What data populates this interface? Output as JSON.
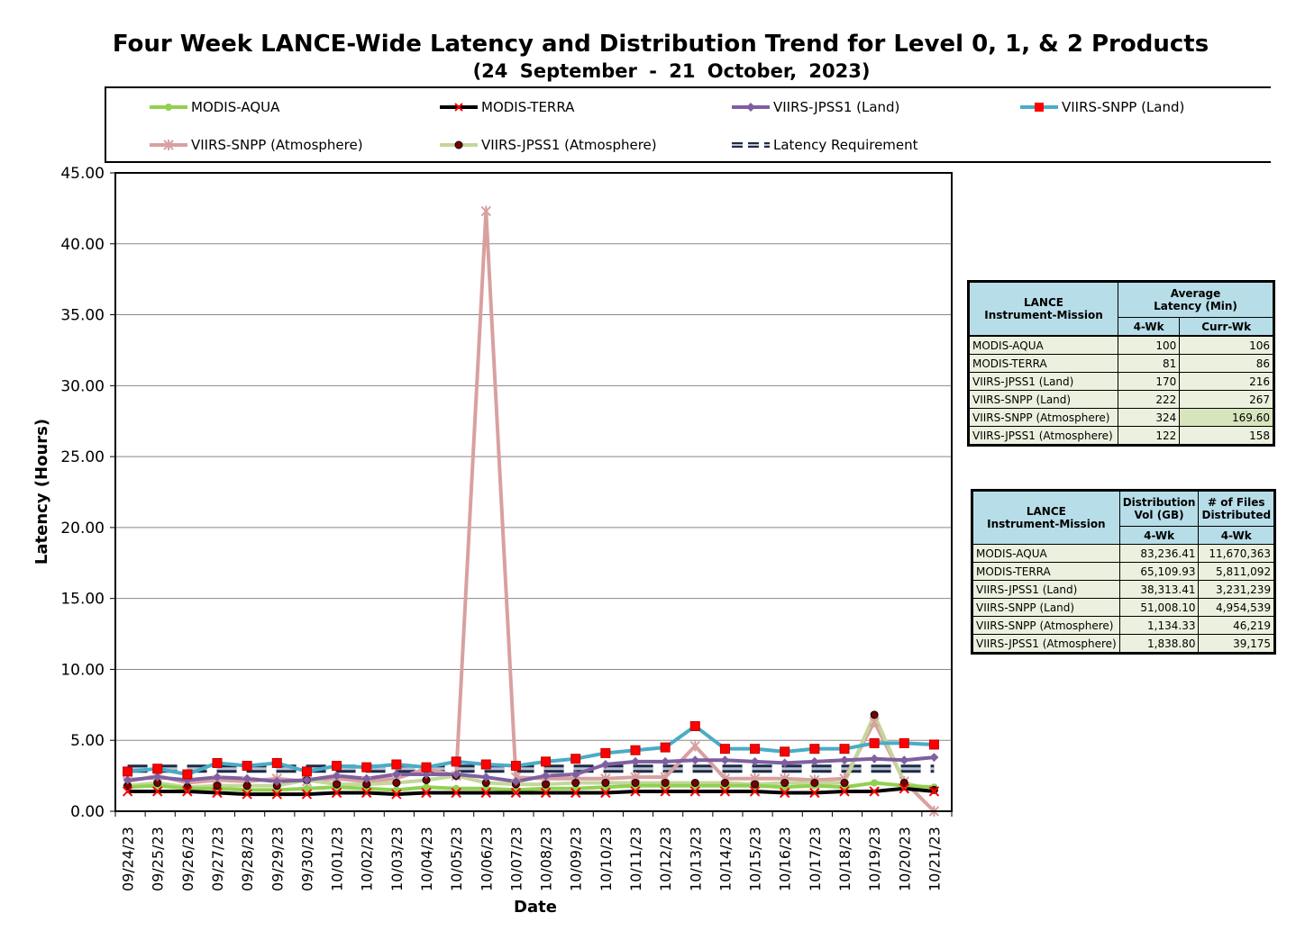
{
  "title": "Four Week LANCE-Wide Latency and Distribution Trend for Level 0, 1, & 2 Products",
  "subtitle": "(24  September   -  21  October,  2023)",
  "legend": [
    {
      "name": "MODIS-AQUA",
      "color": "#92d050",
      "marker": "circle"
    },
    {
      "name": "MODIS-TERRA",
      "color": "#000000",
      "marker": "x-red"
    },
    {
      "name": "VIIRS-JPSS1 (Land)",
      "color": "#7f5fa0",
      "marker": "diamond"
    },
    {
      "name": "VIIRS-SNPP (Land)",
      "color": "#4bacc6",
      "marker": "square-red"
    },
    {
      "name": "VIIRS-SNPP (Atmosphere)",
      "color": "#d9a0a0",
      "marker": "star"
    },
    {
      "name": "VIIRS-JPSS1 (Atmosphere)",
      "color": "#c4d79b",
      "marker": "circle-dark"
    },
    {
      "name": "Latency Requirement",
      "color": "#1f2a44",
      "marker": "dash"
    }
  ],
  "chart_data": {
    "type": "line",
    "xlabel": "Date",
    "ylabel": "Latency (Hours)",
    "ylim": [
      0,
      45
    ],
    "yticks": [
      "0.00",
      "5.00",
      "10.00",
      "15.00",
      "20.00",
      "25.00",
      "30.00",
      "35.00",
      "40.00",
      "45.00"
    ],
    "categories": [
      "09/24/23",
      "09/25/23",
      "09/26/23",
      "09/27/23",
      "09/28/23",
      "09/29/23",
      "09/30/23",
      "10/01/23",
      "10/02/23",
      "10/03/23",
      "10/04/23",
      "10/05/23",
      "10/06/23",
      "10/07/23",
      "10/08/23",
      "10/09/23",
      "10/10/23",
      "10/11/23",
      "10/12/23",
      "10/13/23",
      "10/14/23",
      "10/15/23",
      "10/16/23",
      "10/17/23",
      "10/18/23",
      "10/19/23",
      "10/20/23",
      "10/21/23"
    ],
    "series": [
      {
        "name": "MODIS-AQUA",
        "color": "#92d050",
        "values": [
          1.7,
          1.8,
          1.6,
          1.6,
          1.5,
          1.5,
          1.6,
          1.7,
          1.6,
          1.5,
          1.7,
          1.6,
          1.6,
          1.5,
          1.6,
          1.6,
          1.7,
          1.8,
          1.8,
          1.8,
          1.8,
          1.8,
          1.7,
          1.8,
          1.7,
          2.0,
          1.8,
          1.7
        ]
      },
      {
        "name": "MODIS-TERRA",
        "color": "#000000",
        "values": [
          1.4,
          1.4,
          1.4,
          1.3,
          1.2,
          1.2,
          1.2,
          1.3,
          1.3,
          1.2,
          1.3,
          1.3,
          1.3,
          1.3,
          1.3,
          1.3,
          1.3,
          1.4,
          1.4,
          1.4,
          1.4,
          1.4,
          1.3,
          1.3,
          1.4,
          1.4,
          1.6,
          1.4
        ]
      },
      {
        "name": "VIIRS-JPSS1 (Land)",
        "color": "#7f5fa0",
        "values": [
          2.2,
          2.4,
          2.2,
          2.4,
          2.3,
          2.1,
          2.2,
          2.5,
          2.3,
          2.6,
          2.6,
          2.6,
          2.4,
          2.1,
          2.5,
          2.6,
          3.3,
          3.5,
          3.5,
          3.6,
          3.6,
          3.5,
          3.4,
          3.5,
          3.6,
          3.7,
          3.6,
          3.8
        ]
      },
      {
        "name": "VIIRS-SNPP (Land)",
        "color": "#4bacc6",
        "values": [
          2.8,
          3.0,
          2.6,
          3.4,
          3.2,
          3.4,
          2.8,
          3.2,
          3.1,
          3.3,
          3.1,
          3.5,
          3.3,
          3.2,
          3.5,
          3.7,
          4.1,
          4.3,
          4.5,
          6.0,
          4.4,
          4.4,
          4.2,
          4.4,
          4.4,
          4.8,
          4.8,
          4.7
        ]
      },
      {
        "name": "VIIRS-SNPP (Atmosphere)",
        "color": "#d9a0a0",
        "values": [
          2.1,
          2.5,
          2.0,
          2.2,
          2.1,
          2.3,
          2.1,
          2.3,
          2.1,
          2.3,
          3.0,
          2.5,
          42.3,
          2.4,
          2.3,
          2.3,
          2.3,
          2.4,
          2.4,
          4.6,
          2.3,
          2.3,
          2.3,
          2.2,
          2.3,
          6.3,
          2.1,
          0.0
        ]
      },
      {
        "name": "VIIRS-JPSS1 (Atmosphere)",
        "color": "#c4d79b",
        "values": [
          1.8,
          2.0,
          1.7,
          1.8,
          1.8,
          1.8,
          2.2,
          1.9,
          1.9,
          2.0,
          2.2,
          2.5,
          2.0,
          1.9,
          1.9,
          2.0,
          2.0,
          2.0,
          2.0,
          2.0,
          2.0,
          1.9,
          2.0,
          2.0,
          2.0,
          6.8,
          2.0,
          1.5
        ]
      },
      {
        "name": "Latency Requirement",
        "color": "#1f2a44",
        "values": [
          3,
          3,
          3,
          3,
          3,
          3,
          3,
          3,
          3,
          3,
          3,
          3,
          3,
          3,
          3,
          3,
          3,
          3,
          3,
          3,
          3,
          3,
          3,
          3,
          3,
          3,
          3,
          3
        ]
      }
    ]
  },
  "latency_table": {
    "header1": [
      "LANCE",
      "Instrument-Mission"
    ],
    "header2": [
      "Average",
      "Latency (Min)"
    ],
    "col_4wk": "4-Wk",
    "col_curr": "Curr-Wk",
    "rows": [
      {
        "mission": "MODIS-AQUA",
        "wk4": "100",
        "curr": "106"
      },
      {
        "mission": "MODIS-TERRA",
        "wk4": "81",
        "curr": "86"
      },
      {
        "mission": "VIIRS-JPSS1 (Land)",
        "wk4": "170",
        "curr": "216"
      },
      {
        "mission": "VIIRS-SNPP (Land)",
        "wk4": "222",
        "curr": "267"
      },
      {
        "mission": "VIIRS-SNPP (Atmosphere)",
        "wk4": "324",
        "curr": "169.60"
      },
      {
        "mission": "VIIRS-JPSS1 (Atmosphere)",
        "wk4": "122",
        "curr": "158"
      }
    ]
  },
  "distribution_table": {
    "header1": [
      "LANCE",
      "Instrument-Mission"
    ],
    "header_vol": [
      "Distribution",
      "Vol (GB)"
    ],
    "header_files": [
      "# of Files",
      "Distributed"
    ],
    "col_4wk": "4-Wk",
    "rows": [
      {
        "mission": "MODIS-AQUA",
        "vol": "83,236.41",
        "files": "11,670,363"
      },
      {
        "mission": "MODIS-TERRA",
        "vol": "65,109.93",
        "files": "5,811,092"
      },
      {
        "mission": "VIIRS-JPSS1 (Land)",
        "vol": "38,313.41",
        "files": "3,231,239"
      },
      {
        "mission": "VIIRS-SNPP (Land)",
        "vol": "51,008.10",
        "files": "4,954,539"
      },
      {
        "mission": "VIIRS-SNPP (Atmosphere)",
        "vol": "1,134.33",
        "files": "46,219"
      },
      {
        "mission": "VIIRS-JPSS1 (Atmosphere)",
        "vol": "1,838.80",
        "files": "39,175"
      }
    ]
  }
}
